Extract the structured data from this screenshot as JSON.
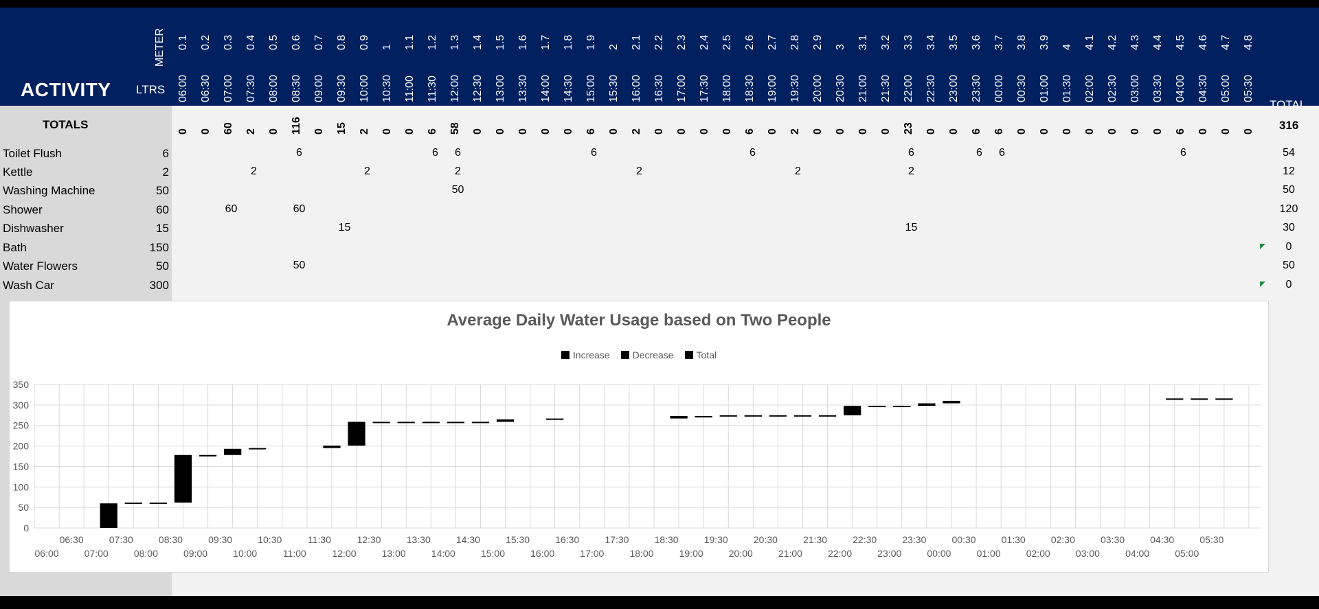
{
  "header": {
    "activity": "ACTIVITY",
    "meter_label": "METER",
    "ltrs_label": "LTRS",
    "total_label": "TOTAL"
  },
  "meters": [
    "0.1",
    "0.2",
    "0.3",
    "0.4",
    "0.5",
    "0.6",
    "0.7",
    "0.8",
    "0.9",
    "1",
    "1.1",
    "1.2",
    "1.3",
    "1.4",
    "1.5",
    "1.6",
    "1.7",
    "1.8",
    "1.9",
    "2",
    "2.1",
    "2.2",
    "2.3",
    "2.4",
    "2.5",
    "2.6",
    "2.7",
    "2.8",
    "2.9",
    "3",
    "3.1",
    "3.2",
    "3.3",
    "3.4",
    "3.5",
    "3.6",
    "3.7",
    "3.8",
    "3.9",
    "4",
    "4.1",
    "4.2",
    "4.3",
    "4.4",
    "4.5",
    "4.6",
    "4.7",
    "4.8"
  ],
  "times": [
    "06:00",
    "06:30",
    "07:00",
    "07:30",
    "08:00",
    "08:30",
    "09:00",
    "09:30",
    "10:00",
    "10:30",
    "11:00",
    "11:30",
    "12:00",
    "12:30",
    "13:00",
    "13:30",
    "14:00",
    "14:30",
    "15:00",
    "15:30",
    "16:00",
    "16:30",
    "17:00",
    "17:30",
    "18:00",
    "18:30",
    "19:00",
    "19:30",
    "20:00",
    "20:30",
    "21:00",
    "21:30",
    "22:00",
    "22:30",
    "23:00",
    "23:30",
    "00:00",
    "00:30",
    "01:00",
    "01:30",
    "02:00",
    "02:30",
    "03:00",
    "03:30",
    "04:00",
    "04:30",
    "05:00",
    "05:30"
  ],
  "totals": {
    "label": "TOTALS",
    "values": [
      0,
      0,
      60,
      2,
      0,
      116,
      0,
      15,
      2,
      0,
      0,
      6,
      58,
      0,
      0,
      0,
      0,
      0,
      6,
      0,
      2,
      0,
      0,
      0,
      0,
      6,
      0,
      2,
      0,
      0,
      0,
      0,
      23,
      0,
      0,
      6,
      6,
      0,
      0,
      0,
      0,
      0,
      0,
      0,
      6,
      0,
      0,
      0
    ],
    "grand_total": "316"
  },
  "activities": [
    {
      "name": "Toilet Flush",
      "ltrs": "6",
      "total": "54",
      "cells": [
        [
          5,
          "6"
        ],
        [
          11,
          "6"
        ],
        [
          12,
          "6"
        ],
        [
          18,
          "6"
        ],
        [
          25,
          "6"
        ],
        [
          32,
          "6"
        ],
        [
          35,
          "6"
        ],
        [
          36,
          "6"
        ],
        [
          44,
          "6"
        ]
      ]
    },
    {
      "name": "Kettle",
      "ltrs": "2",
      "total": "12",
      "cells": [
        [
          3,
          "2"
        ],
        [
          8,
          "2"
        ],
        [
          12,
          "2"
        ],
        [
          20,
          "2"
        ],
        [
          27,
          "2"
        ],
        [
          32,
          "2"
        ]
      ]
    },
    {
      "name": "Washing Machine",
      "ltrs": "50",
      "total": "50",
      "cells": [
        [
          12,
          "50"
        ]
      ]
    },
    {
      "name": "Shower",
      "ltrs": "60",
      "total": "120",
      "cells": [
        [
          2,
          "60"
        ],
        [
          5,
          "60"
        ]
      ]
    },
    {
      "name": "Dishwasher",
      "ltrs": "15",
      "total": "30",
      "cells": [
        [
          7,
          "15"
        ],
        [
          32,
          "15"
        ]
      ]
    },
    {
      "name": "Bath",
      "ltrs": "150",
      "total": "0",
      "cells": [],
      "flag": true
    },
    {
      "name": "Water Flowers",
      "ltrs": "50",
      "total": "50",
      "cells": [
        [
          5,
          "50"
        ]
      ]
    },
    {
      "name": "Wash Car",
      "ltrs": "300",
      "total": "0",
      "cells": [],
      "flag": true
    }
  ],
  "chart_data": {
    "type": "waterfall",
    "title": "Average Daily Water Usage based on Two People",
    "legend": [
      "Increase",
      "Decrease",
      "Total"
    ],
    "legend_position": "top-center",
    "ylim": [
      0,
      350
    ],
    "yticks": [
      0,
      50,
      100,
      150,
      200,
      250,
      300,
      350
    ],
    "grid": true,
    "categories": [
      "06:00",
      "06:30",
      "07:00",
      "07:30",
      "08:00",
      "08:30",
      "09:00",
      "09:30",
      "10:00",
      "10:30",
      "11:00",
      "11:30",
      "12:00",
      "12:30",
      "13:00",
      "13:30",
      "14:00",
      "14:30",
      "15:00",
      "15:30",
      "16:00",
      "16:30",
      "17:00",
      "17:30",
      "18:00",
      "18:30",
      "19:00",
      "19:30",
      "20:00",
      "20:30",
      "21:00",
      "21:30",
      "22:00",
      "22:30",
      "23:00",
      "23:30",
      "00:00",
      "00:30",
      "01:00",
      "01:30",
      "02:00",
      "02:30",
      "03:00",
      "03:30",
      "04:00",
      "04:30",
      "05:00",
      "05:30"
    ],
    "start": [
      0,
      0,
      0,
      60,
      62,
      62,
      178,
      178,
      193,
      195,
      195,
      195,
      201,
      259,
      259,
      259,
      259,
      259,
      259,
      265,
      265,
      267,
      267,
      267,
      267,
      267,
      273,
      273,
      275,
      275,
      275,
      275,
      275,
      298,
      298,
      298,
      304,
      310,
      310,
      310,
      310,
      310,
      310,
      310,
      310,
      316,
      316,
      316
    ],
    "end": [
      0,
      0,
      60,
      62,
      62,
      178,
      178,
      193,
      195,
      195,
      195,
      201,
      259,
      259,
      259,
      259,
      259,
      259,
      265,
      265,
      267,
      267,
      267,
      267,
      267,
      273,
      273,
      275,
      275,
      275,
      275,
      275,
      298,
      298,
      298,
      304,
      310,
      310,
      310,
      310,
      310,
      310,
      310,
      310,
      316,
      316,
      316,
      316
    ],
    "shown": [
      false,
      false,
      true,
      true,
      true,
      true,
      true,
      true,
      true,
      false,
      false,
      true,
      true,
      true,
      true,
      true,
      true,
      true,
      true,
      false,
      true,
      false,
      false,
      false,
      false,
      true,
      true,
      true,
      true,
      true,
      true,
      true,
      true,
      true,
      true,
      true,
      true,
      false,
      false,
      false,
      false,
      false,
      false,
      false,
      false,
      true,
      true,
      true
    ]
  }
}
